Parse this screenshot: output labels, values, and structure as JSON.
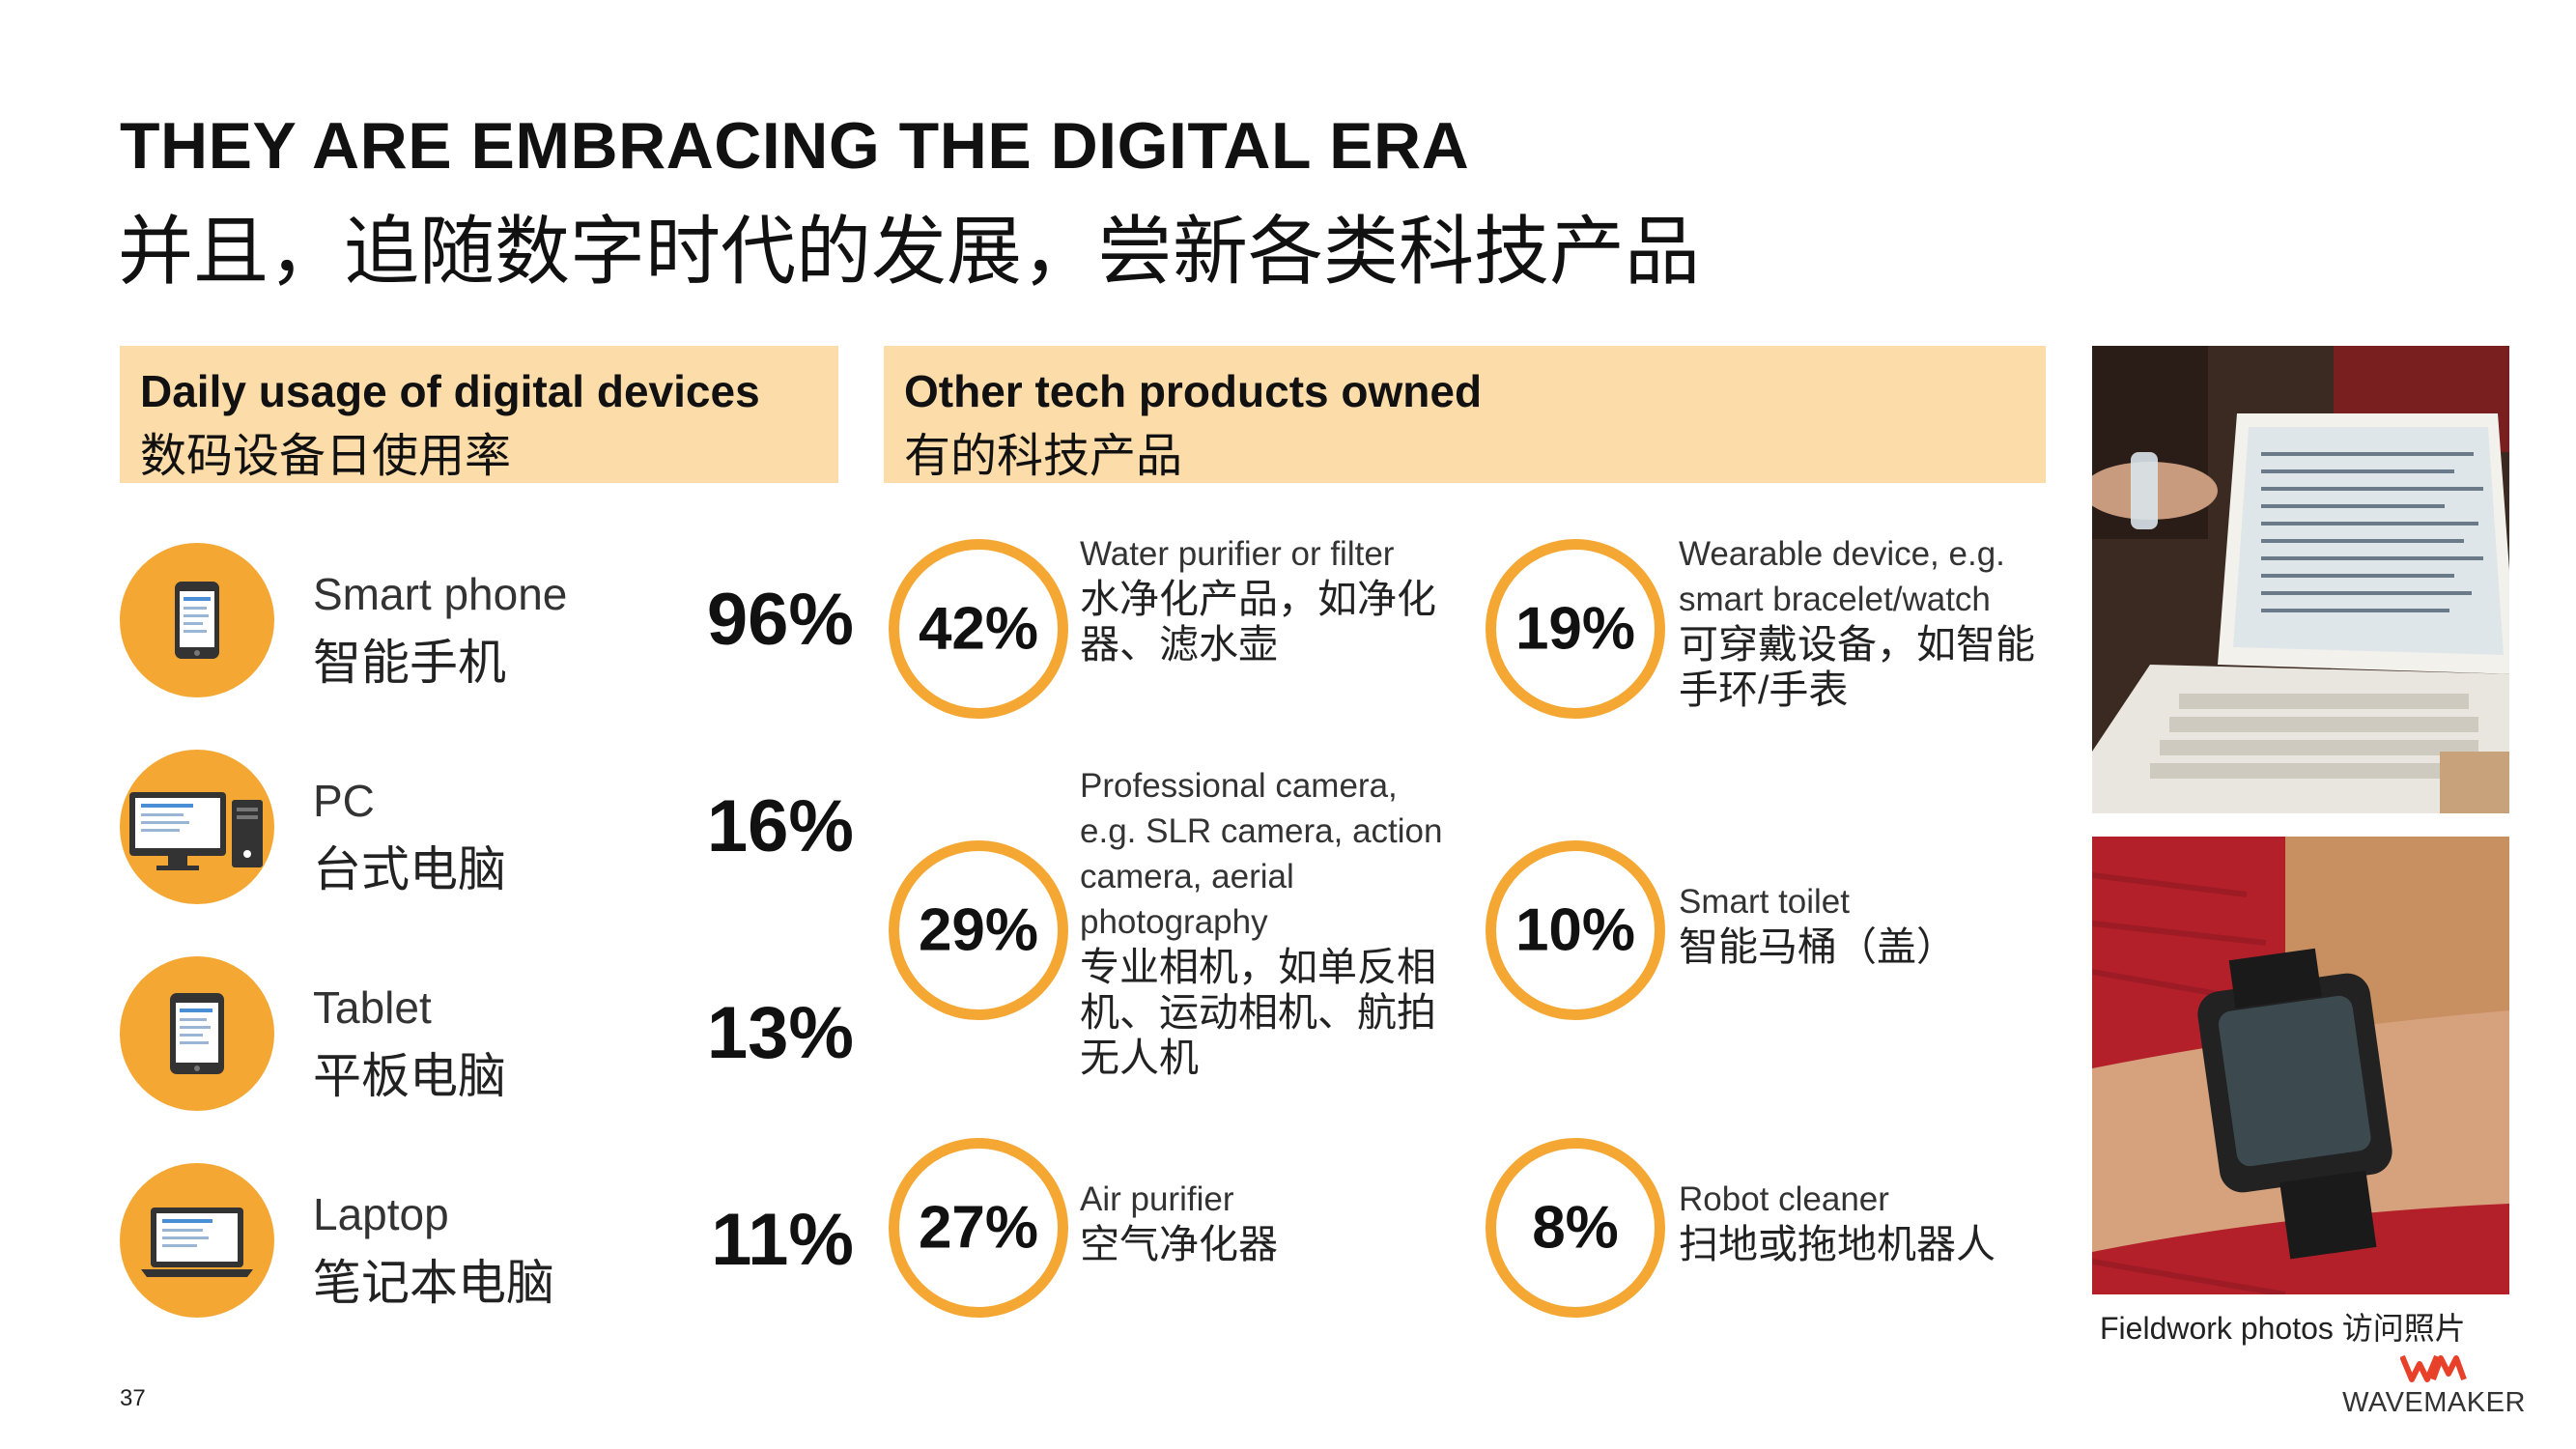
{
  "title": {
    "en": "THEY ARE EMBRACING THE DIGITAL ERA",
    "cn": "并且，追随数字时代的发展，尝新各类科技产品"
  },
  "daily_usage": {
    "header_en": "Daily usage of digital devices",
    "header_cn": "数码设备日使用率",
    "items": [
      {
        "en": "Smart phone",
        "cn": "智能手机",
        "pct": "96%",
        "icon": "smartphone-icon"
      },
      {
        "en": "PC",
        "cn": "台式电脑",
        "pct": "16%",
        "icon": "desktop-pc-icon"
      },
      {
        "en": "Tablet",
        "cn": "平板电脑",
        "pct": "13%",
        "icon": "tablet-icon"
      },
      {
        "en": "Laptop",
        "cn": "笔记本电脑",
        "pct": "11%",
        "icon": "laptop-icon"
      }
    ]
  },
  "other_tech": {
    "header_en": "Other tech products owned",
    "header_cn": "有的科技产品",
    "items": [
      {
        "pct": "42%",
        "en": "Water purifier or filter",
        "cn": "水净化产品，如净化器、滤水壶"
      },
      {
        "pct": "19%",
        "en": "Wearable device, e.g. smart bracelet/watch",
        "cn": "可穿戴设备，如智能手环/手表"
      },
      {
        "pct": "29%",
        "en": "Professional camera, e.g. SLR camera, action camera, aerial photography",
        "cn": "专业相机，如单反相机、运动相机、航拍无人机"
      },
      {
        "pct": "10%",
        "en": "Smart toilet",
        "cn": "智能马桶（盖）"
      },
      {
        "pct": "27%",
        "en": "Air purifier",
        "cn": "空气净化器"
      },
      {
        "pct": "8%",
        "en": "Robot cleaner",
        "cn": "扫地或拖地机器人"
      }
    ]
  },
  "photos": {
    "caption": "Fieldwork photos 访问照片"
  },
  "footer": {
    "page_number": "37",
    "logo_text": "WAVEMAKER"
  },
  "colors": {
    "accent": "#f5a733",
    "header_bg": "#fcdca8",
    "logo_red": "#e8412b"
  }
}
